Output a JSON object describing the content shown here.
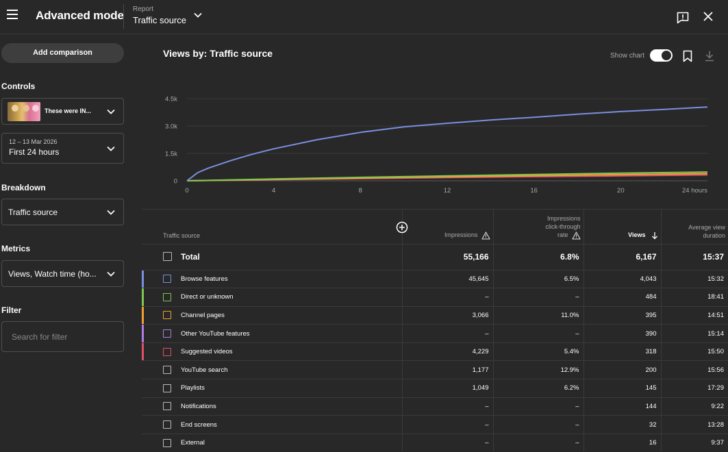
{
  "header": {
    "title": "Advanced mode",
    "report_label": "Report",
    "report_value": "Traffic source"
  },
  "sidebar": {
    "add_comparison": "Add comparison",
    "controls_label": "Controls",
    "video_title": "These were IN...",
    "date_range": "12 – 13 Mar 2026",
    "date_value": "First 24 hours",
    "breakdown_label": "Breakdown",
    "breakdown_value": "Traffic source",
    "metrics_label": "Metrics",
    "metrics_value": "Views, Watch time (ho...",
    "filter_label": "Filter",
    "filter_placeholder": "Search for filter"
  },
  "chart": {
    "title": "Views by: Traffic source",
    "show_chart_label": "Show chart",
    "show_chart_on": true
  },
  "chart_data": {
    "type": "line",
    "title": "Views by: Traffic source",
    "xlabel": "",
    "ylabel": "",
    "x_ticks": [
      "0",
      "4",
      "8",
      "12",
      "16",
      "20",
      "24 hours"
    ],
    "y_ticks": [
      "0",
      "1.5k",
      "3.0k",
      "4.5k"
    ],
    "xlim": [
      0,
      24
    ],
    "ylim": [
      0,
      4500
    ],
    "series": [
      {
        "name": "Browse features",
        "color": "#7b8fe0",
        "x": [
          0,
          0.5,
          1,
          2,
          3,
          4,
          6,
          8,
          10,
          12,
          14,
          16,
          18,
          20,
          22,
          24
        ],
        "y": [
          0,
          450,
          700,
          1100,
          1450,
          1750,
          2250,
          2650,
          2950,
          3150,
          3330,
          3480,
          3650,
          3790,
          3910,
          4043
        ]
      },
      {
        "name": "Direct or unknown",
        "color": "#7ec850",
        "x": [
          0,
          4,
          8,
          12,
          16,
          20,
          24
        ],
        "y": [
          0,
          100,
          190,
          270,
          350,
          420,
          484
        ]
      },
      {
        "name": "Channel pages",
        "color": "#f0a030",
        "x": [
          0,
          4,
          8,
          12,
          16,
          20,
          24
        ],
        "y": [
          0,
          80,
          150,
          220,
          280,
          340,
          395
        ]
      },
      {
        "name": "Other YouTube features",
        "color": "#b07ee0",
        "x": [
          0,
          4,
          8,
          12,
          16,
          20,
          24
        ],
        "y": [
          0,
          80,
          150,
          215,
          280,
          335,
          390
        ]
      },
      {
        "name": "Suggested videos",
        "color": "#e0506a",
        "x": [
          0,
          4,
          8,
          12,
          16,
          20,
          24
        ],
        "y": [
          0,
          60,
          120,
          175,
          225,
          270,
          318
        ]
      }
    ]
  },
  "table": {
    "headers": {
      "traffic_source": "Traffic source",
      "impressions": "Impressions",
      "ctr_line1": "Impressions",
      "ctr_line2": "click-through",
      "ctr_line3": "rate",
      "views": "Views",
      "avd_line1": "Average view",
      "avd_line2": "duration"
    },
    "total": {
      "name": "Total",
      "impressions": "55,166",
      "ctr": "6.8%",
      "views": "6,167",
      "avd": "15:37"
    },
    "rows": [
      {
        "name": "Browse features",
        "color": "#7b8fe0",
        "impressions": "45,645",
        "ctr": "6.5%",
        "views": "4,043",
        "avd": "15:32"
      },
      {
        "name": "Direct or unknown",
        "color": "#7ec850",
        "impressions": "–",
        "ctr": "–",
        "views": "484",
        "avd": "18:41"
      },
      {
        "name": "Channel pages",
        "color": "#f0a030",
        "impressions": "3,066",
        "ctr": "11.0%",
        "views": "395",
        "avd": "14:51"
      },
      {
        "name": "Other YouTube features",
        "color": "#b07ee0",
        "impressions": "–",
        "ctr": "–",
        "views": "390",
        "avd": "15:14"
      },
      {
        "name": "Suggested videos",
        "color": "#e0506a",
        "impressions": "4,229",
        "ctr": "5.4%",
        "views": "318",
        "avd": "15:50"
      },
      {
        "name": "YouTube search",
        "color": "",
        "impressions": "1,177",
        "ctr": "12.9%",
        "views": "200",
        "avd": "15:56"
      },
      {
        "name": "Playlists",
        "color": "",
        "impressions": "1,049",
        "ctr": "6.2%",
        "views": "145",
        "avd": "17:29"
      },
      {
        "name": "Notifications",
        "color": "",
        "impressions": "–",
        "ctr": "–",
        "views": "144",
        "avd": "9:22"
      },
      {
        "name": "End screens",
        "color": "",
        "impressions": "–",
        "ctr": "–",
        "views": "32",
        "avd": "13:28"
      },
      {
        "name": "External",
        "color": "",
        "impressions": "–",
        "ctr": "–",
        "views": "16",
        "avd": "9:37"
      }
    ]
  }
}
